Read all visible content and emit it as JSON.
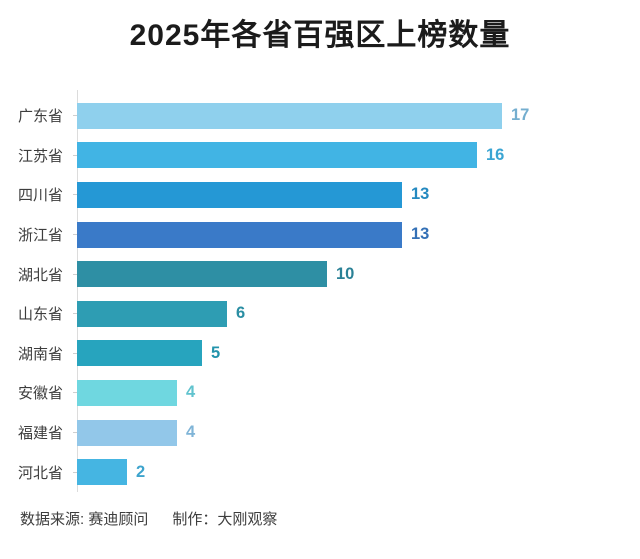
{
  "title": "2025年各省百强区上榜数量",
  "chart_data": {
    "type": "bar",
    "orientation": "horizontal",
    "title": "2025年各省百强区上榜数量",
    "categories": [
      "广东省",
      "江苏省",
      "四川省",
      "浙江省",
      "湖北省",
      "山东省",
      "湖南省",
      "安徽省",
      "福建省",
      "河北省"
    ],
    "values": [
      17,
      16,
      13,
      13,
      10,
      6,
      5,
      4,
      4,
      2
    ],
    "bar_colors": [
      "#8FD0ED",
      "#41B4E4",
      "#2598D5",
      "#3A7AC8",
      "#2E8FA4",
      "#2E9DB3",
      "#27A4BE",
      "#6FD7E0",
      "#92C7E9",
      "#45B5E2"
    ],
    "value_label_colors": [
      "#74AECF",
      "#3AA5D3",
      "#2489C0",
      "#3370B6",
      "#2A8196",
      "#2A8EA3",
      "#2394AC",
      "#60C3CE",
      "#7FB4D7",
      "#3EA4CD"
    ],
    "xlim": [
      0,
      17
    ],
    "grid": false,
    "legend": false,
    "value_labels_shown": true,
    "axis_line_color": "#dcdcdc"
  },
  "footer": {
    "source": "数据来源: 赛迪顾问",
    "credit": "制作：大刚观察"
  }
}
